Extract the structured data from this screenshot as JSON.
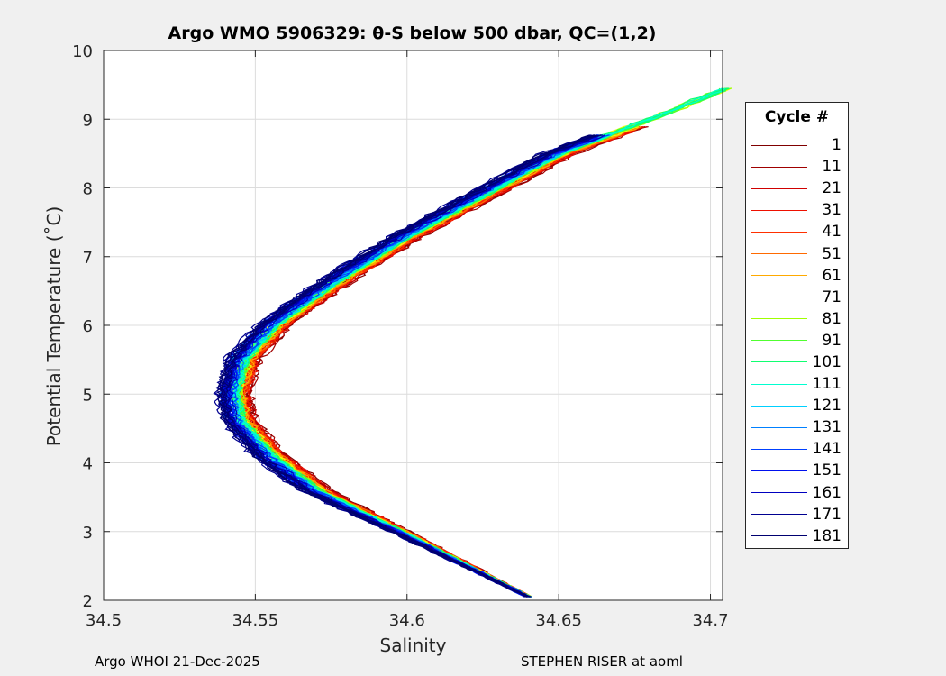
{
  "chart_data": {
    "type": "line",
    "title": "Argo WMO 5906329: θ-S below 500 dbar,  QC=(1,2)",
    "xlabel": "Salinity",
    "ylabel": "Potential Temperature (˚C)",
    "xlim": [
      34.5,
      34.704
    ],
    "ylim": [
      2,
      10
    ],
    "xticks": [
      "34.5",
      "34.55",
      "34.6",
      "34.65",
      "34.7"
    ],
    "yticks": [
      "2",
      "3",
      "4",
      "5",
      "6",
      "7",
      "8",
      "9",
      "10"
    ],
    "grid": true,
    "legend_title": "Cycle #",
    "legend_position": "right-outside",
    "legend": [
      {
        "label": "1",
        "color": "#800000"
      },
      {
        "label": "11",
        "color": "#a00000"
      },
      {
        "label": "21",
        "color": "#d00000"
      },
      {
        "label": "31",
        "color": "#ee1000"
      },
      {
        "label": "41",
        "color": "#ff3000"
      },
      {
        "label": "51",
        "color": "#ff6a00"
      },
      {
        "label": "61",
        "color": "#ffaa00"
      },
      {
        "label": "71",
        "color": "#e8ff10"
      },
      {
        "label": "81",
        "color": "#a0ff00"
      },
      {
        "label": "91",
        "color": "#50ff30"
      },
      {
        "label": "101",
        "color": "#10ff70"
      },
      {
        "label": "111",
        "color": "#00ffd0"
      },
      {
        "label": "121",
        "color": "#00d0ff"
      },
      {
        "label": "131",
        "color": "#0080ff"
      },
      {
        "label": "141",
        "color": "#0040ff"
      },
      {
        "label": "151",
        "color": "#0010ee"
      },
      {
        "label": "161",
        "color": "#0000c0"
      },
      {
        "label": "171",
        "color": "#000090"
      },
      {
        "label": "181",
        "color": "#000070"
      }
    ],
    "mean_profile": {
      "salinity": [
        34.64,
        34.6,
        34.57,
        34.555,
        34.545,
        34.543,
        34.546,
        34.556,
        34.575,
        34.6,
        34.625,
        34.65,
        34.68,
        34.705
      ],
      "theta": [
        2.05,
        2.95,
        3.6,
        4.1,
        4.6,
        5.0,
        5.5,
        6.0,
        6.6,
        7.3,
        7.9,
        8.5,
        9.0,
        9.45
      ]
    }
  },
  "footer": {
    "left": "Argo WHOI 21-Dec-2025",
    "right": "STEPHEN RISER at aoml"
  }
}
